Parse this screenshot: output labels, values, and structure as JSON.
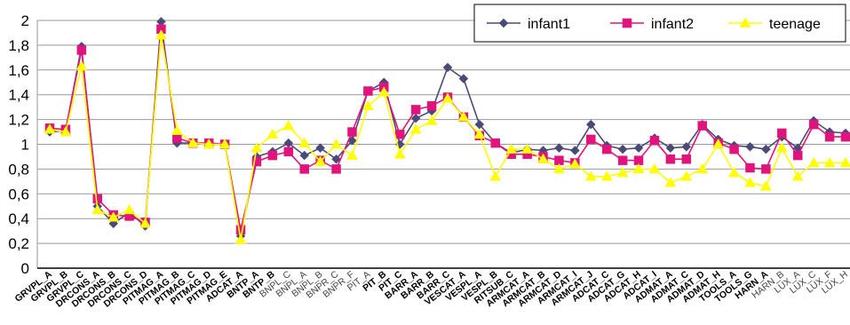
{
  "chart_data": {
    "type": "line",
    "title": "",
    "xlabel": "",
    "ylabel": "",
    "ylim": [
      0,
      2
    ],
    "yticks": [
      "0",
      "0,2",
      "0,4",
      "0,6",
      "0,8",
      "1",
      "1,2",
      "1,4",
      "1,6",
      "1,8",
      "2"
    ],
    "grid": "horizontal",
    "legend_position": "top-right",
    "categories": [
      "GRVPL_A",
      "GRVPL_B",
      "GRVPL_C",
      "DRCONS_A",
      "DRCONS_B",
      "DRCONS_C",
      "DRCONS_D",
      "PITMAG_A",
      "PITMAG_B",
      "PITMAG_C",
      "PITMAG_D",
      "PITMAG_E",
      "ADCAT_A",
      "BNTP_A",
      "BNTP_B",
      "BNPL_C",
      "BNPL_A",
      "BNPL_B",
      "BNPR_C",
      "BNPR_F",
      "PIT_A",
      "PIT_B",
      "PIT_C",
      "BARR_A",
      "BARR_B",
      "BARR_C",
      "VESCAT_A",
      "VESPL_A",
      "VESPL_B",
      "RITSUB_C",
      "ARMCAT_A",
      "ARMCAT_B",
      "ARMCAT_D",
      "ARMCAT_I",
      "ARMCAT_J",
      "ADCAT_C",
      "ADCAT_G",
      "ADCAT_H",
      "ADCAT_I",
      "ADMAT_A",
      "ADMAT_C",
      "ADMAT_D",
      "ADMAT_H",
      "TOOLS_A",
      "TOOLS_G",
      "HARN_A",
      "HARN_B",
      "LUX_A",
      "LUX_C",
      "LUX_F",
      "LUX_H"
    ],
    "light_labels": [
      "BNPL_C",
      "BNPL_A",
      "BNPL_B",
      "BNPR_C",
      "BNPR_F",
      "PIT_A",
      "HARN_B",
      "LUX_A",
      "LUX_C",
      "LUX_F",
      "LUX_H"
    ],
    "series": [
      {
        "name": "infant1",
        "color": "#4a4a78",
        "marker": "diamond",
        "values": [
          1.1,
          1.11,
          1.79,
          0.5,
          0.36,
          0.45,
          0.34,
          1.99,
          1.01,
          1.01,
          1.0,
          1.0,
          0.26,
          0.9,
          0.94,
          1.01,
          0.91,
          0.97,
          0.88,
          1.03,
          1.43,
          1.5,
          1.0,
          1.21,
          1.27,
          1.62,
          1.53,
          1.16,
          1.01,
          0.93,
          0.96,
          0.95,
          0.97,
          0.95,
          1.16,
          0.99,
          0.96,
          0.97,
          1.05,
          0.97,
          0.98,
          1.16,
          1.04,
          0.99,
          0.98,
          0.96,
          1.06,
          0.97,
          1.19,
          1.1,
          1.09
        ]
      },
      {
        "name": "infant2",
        "color": "#e0147c",
        "marker": "square",
        "values": [
          1.13,
          1.12,
          1.76,
          0.56,
          0.43,
          0.42,
          0.37,
          1.93,
          1.05,
          1.01,
          1.01,
          1.0,
          0.31,
          0.86,
          0.91,
          0.94,
          0.8,
          0.87,
          0.8,
          1.1,
          1.43,
          1.46,
          1.08,
          1.28,
          1.31,
          1.38,
          1.22,
          1.07,
          1.01,
          0.92,
          0.92,
          0.9,
          0.87,
          0.85,
          1.04,
          0.96,
          0.87,
          0.87,
          1.03,
          0.88,
          0.88,
          1.15,
          1.01,
          0.96,
          0.81,
          0.8,
          1.09,
          0.91,
          1.16,
          1.06,
          1.06
        ]
      },
      {
        "name": "teenage",
        "color": "#ffff00",
        "marker": "triangle",
        "values": [
          1.12,
          1.1,
          1.63,
          0.47,
          0.41,
          0.47,
          0.36,
          1.88,
          1.11,
          1.01,
          1.0,
          1.0,
          0.23,
          0.97,
          1.08,
          1.15,
          1.01,
          0.86,
          1.0,
          0.91,
          1.31,
          1.42,
          0.92,
          1.12,
          1.19,
          1.37,
          1.22,
          1.08,
          0.74,
          0.96,
          0.96,
          0.88,
          0.8,
          0.84,
          0.74,
          0.74,
          0.77,
          0.8,
          0.8,
          0.69,
          0.74,
          0.8,
          1.0,
          0.77,
          0.69,
          0.66,
          0.97,
          0.74,
          0.85,
          0.85,
          0.85
        ]
      }
    ]
  }
}
